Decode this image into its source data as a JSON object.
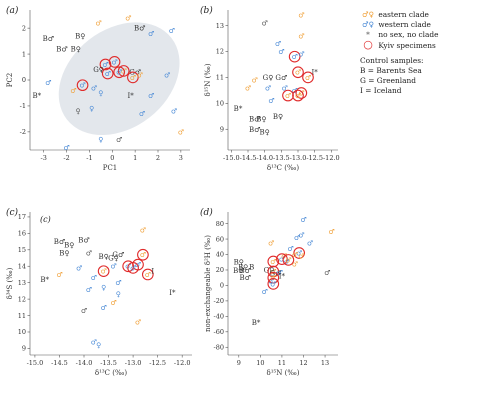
{
  "legend": {
    "items": [
      {
        "symbol": "♂♀",
        "label": "eastern clade",
        "color": "#f0a038"
      },
      {
        "symbol": "♂♀",
        "label": "western clade",
        "color": "#4a8ad6"
      },
      {
        "symbol": "*",
        "label": "no sex, no clade",
        "color": "#555555"
      },
      {
        "symbol": "○",
        "label": "Kyiv specimens",
        "color": "#e02b2b"
      }
    ],
    "control_title": "Control samples:",
    "controls": [
      "B = Barents Sea",
      "G = Greenland",
      "I = Iceland"
    ]
  },
  "colors": {
    "eastern": "#f0a038",
    "western": "#4a8ad6",
    "none": "#555555",
    "kyiv": "#e02b2b",
    "ellipse": "#e3e7ec"
  },
  "chart_data": [
    {
      "panel": "(a)",
      "type": "scatter",
      "xlabel": "PC1",
      "ylabel": "PC2",
      "xlim": [
        -3.6,
        3.4
      ],
      "ylim": [
        -2.7,
        2.7
      ],
      "xticks": [
        -3,
        -2,
        -1,
        0,
        1,
        2,
        3
      ],
      "yticks": [
        -2,
        -1,
        0,
        1,
        2
      ],
      "ellipse": {
        "cx": 0.3,
        "cy": 0.05,
        "rx": 2.9,
        "ry": 1.9,
        "angle": -38
      },
      "points": [
        {
          "x": 0.7,
          "y": 2.4,
          "clade": "eastern",
          "sex": "♂"
        },
        {
          "x": -0.6,
          "y": 2.2,
          "clade": "eastern",
          "sex": "♂"
        },
        {
          "x": 1.2,
          "y": 2.0,
          "label": "B",
          "sex": "♂",
          "clade": "control"
        },
        {
          "x": 1.7,
          "y": 1.8,
          "clade": "western",
          "sex": "♂"
        },
        {
          "x": -1.4,
          "y": 1.7,
          "label": "B",
          "sex": "♀",
          "clade": "control"
        },
        {
          "x": -2.8,
          "y": 1.6,
          "label": "B",
          "sex": "♂",
          "clade": "control"
        },
        {
          "x": -2.2,
          "y": 1.2,
          "label": "B",
          "sex": "♂",
          "clade": "control"
        },
        {
          "x": -1.6,
          "y": 1.2,
          "label": "B",
          "sex": "♀",
          "clade": "control"
        },
        {
          "x": 2.6,
          "y": 1.9,
          "clade": "western",
          "sex": "♂"
        },
        {
          "x": 0.1,
          "y": 0.7,
          "clade": "western",
          "sex": "♂",
          "kyiv": true
        },
        {
          "x": -0.3,
          "y": 0.6,
          "clade": "western",
          "sex": "♂",
          "kyiv": true
        },
        {
          "x": -0.6,
          "y": 0.4,
          "label": "G",
          "sex": "♀",
          "clade": "control"
        },
        {
          "x": 0.5,
          "y": 0.35,
          "clade": "eastern",
          "sex": "♂",
          "kyiv": true
        },
        {
          "x": 1.0,
          "y": 0.3,
          "label": "G",
          "sex": "♂",
          "clade": "control"
        },
        {
          "x": 0.3,
          "y": 0.3,
          "clade": "western",
          "sex": "♂",
          "kyiv": true
        },
        {
          "x": -0.2,
          "y": 0.25,
          "clade": "western",
          "sex": "♂",
          "kyiv": true
        },
        {
          "x": 0.9,
          "y": 0.1,
          "clade": "eastern",
          "sex": "♂",
          "kyiv": true
        },
        {
          "x": 1.2,
          "y": 0.2,
          "clade": "eastern",
          "sex": "♂"
        },
        {
          "x": 2.4,
          "y": 0.2,
          "clade": "western",
          "sex": "♂"
        },
        {
          "x": -2.8,
          "y": -0.1,
          "clade": "western",
          "sex": "♂"
        },
        {
          "x": -1.3,
          "y": -0.2,
          "clade": "western",
          "sex": "♂",
          "kyiv": true
        },
        {
          "x": -0.8,
          "y": -0.3,
          "clade": "western",
          "sex": "♂"
        },
        {
          "x": -1.7,
          "y": -0.4,
          "clade": "eastern",
          "sex": "♂"
        },
        {
          "x": -0.5,
          "y": -0.5,
          "clade": "western",
          "sex": "♀"
        },
        {
          "x": 0.8,
          "y": -0.6,
          "label": "I",
          "sex": "*",
          "clade": "control"
        },
        {
          "x": 1.7,
          "y": -0.6,
          "clade": "western",
          "sex": "♂"
        },
        {
          "x": -3.3,
          "y": -0.6,
          "label": "B",
          "sex": "*",
          "clade": "control"
        },
        {
          "x": -1.5,
          "y": -1.2,
          "clade": "none",
          "sex": "♀"
        },
        {
          "x": 1.3,
          "y": -1.3,
          "clade": "western",
          "sex": "♂"
        },
        {
          "x": 2.7,
          "y": -1.2,
          "clade": "western",
          "sex": "♂"
        },
        {
          "x": -0.9,
          "y": -1.1,
          "clade": "western",
          "sex": "♀"
        },
        {
          "x": 3.0,
          "y": -2.0,
          "clade": "eastern",
          "sex": "♂"
        },
        {
          "x": -0.5,
          "y": -2.3,
          "clade": "western",
          "sex": "♀"
        },
        {
          "x": 0.3,
          "y": -2.3,
          "clade": "none",
          "sex": "♂"
        },
        {
          "x": -2.0,
          "y": -2.6,
          "clade": "western",
          "sex": "♂"
        }
      ]
    },
    {
      "panel": "(b)",
      "type": "scatter",
      "xlabel": "δ¹³C (‰)",
      "ylabel": "δ¹⁵N (‰)",
      "xlim": [
        -15.1,
        -11.8
      ],
      "ylim": [
        8.2,
        13.6
      ],
      "xticks": [
        -15.0,
        -14.5,
        -14.0,
        -13.5,
        -13.0,
        -12.5,
        -12.0
      ],
      "yticks": [
        9,
        10,
        11,
        12,
        13
      ],
      "points": [
        {
          "x": -12.9,
          "y": 13.4,
          "clade": "eastern",
          "sex": "♂"
        },
        {
          "x": -14.0,
          "y": 13.1,
          "clade": "none",
          "sex": "♂"
        },
        {
          "x": -12.9,
          "y": 12.6,
          "clade": "eastern",
          "sex": "♂"
        },
        {
          "x": -13.6,
          "y": 12.3,
          "clade": "western",
          "sex": "♂"
        },
        {
          "x": -13.5,
          "y": 12.0,
          "clade": "western",
          "sex": "♂"
        },
        {
          "x": -13.1,
          "y": 11.8,
          "clade": "western",
          "sex": "♂",
          "kyiv": true
        },
        {
          "x": -12.9,
          "y": 11.9,
          "clade": "western",
          "sex": "♂"
        },
        {
          "x": -13.0,
          "y": 11.2,
          "clade": "eastern",
          "sex": "♂",
          "kyiv": true
        },
        {
          "x": -12.5,
          "y": 11.2,
          "label": "I",
          "sex": "*",
          "clade": "control"
        },
        {
          "x": -13.9,
          "y": 11.0,
          "label": "G",
          "sex": "♀",
          "clade": "control"
        },
        {
          "x": -13.5,
          "y": 11.0,
          "label": "G",
          "sex": "♂",
          "clade": "control"
        },
        {
          "x": -12.7,
          "y": 11.0,
          "clade": "eastern",
          "sex": "♂",
          "kyiv": true
        },
        {
          "x": -13.9,
          "y": 10.6,
          "clade": "western",
          "sex": "♂"
        },
        {
          "x": -13.4,
          "y": 10.6,
          "clade": "western",
          "sex": "♂"
        },
        {
          "x": -13.1,
          "y": 10.5,
          "clade": "western",
          "sex": "♂"
        },
        {
          "x": -12.9,
          "y": 10.4,
          "clade": "eastern",
          "sex": "♂",
          "kyiv": true
        },
        {
          "x": -13.3,
          "y": 10.3,
          "clade": "eastern",
          "sex": "♂",
          "kyiv": true
        },
        {
          "x": -13.0,
          "y": 10.3,
          "clade": "eastern",
          "sex": "♂",
          "kyiv": true
        },
        {
          "x": -13.8,
          "y": 10.1,
          "clade": "western",
          "sex": "♂"
        },
        {
          "x": -14.5,
          "y": 10.6,
          "clade": "eastern",
          "sex": "♂"
        },
        {
          "x": -14.3,
          "y": 10.9,
          "clade": "eastern",
          "sex": "♂"
        },
        {
          "x": -14.8,
          "y": 9.8,
          "label": "B",
          "sex": "*",
          "clade": "control"
        },
        {
          "x": -14.3,
          "y": 9.4,
          "label": "B",
          "sex": "♂",
          "clade": "control"
        },
        {
          "x": -14.1,
          "y": 9.4,
          "label": "B",
          "sex": "♀",
          "clade": "control"
        },
        {
          "x": -13.6,
          "y": 9.5,
          "label": "B",
          "sex": "♀",
          "clade": "control"
        },
        {
          "x": -14.3,
          "y": 9.0,
          "label": "B",
          "sex": "♂",
          "clade": "control"
        },
        {
          "x": -14.0,
          "y": 8.9,
          "label": "B",
          "sex": "♀",
          "clade": "control"
        }
      ]
    },
    {
      "panel": "(c)",
      "type": "scatter",
      "xlabel": "δ¹³C (‰)",
      "ylabel": "δ³⁴S (‰)",
      "xlim": [
        -15.1,
        -11.8
      ],
      "ylim": [
        8.6,
        17.3
      ],
      "xticks": [
        -15.0,
        -14.5,
        -14.0,
        -13.5,
        -13.0,
        -12.5,
        -12.0
      ],
      "yticks": [
        9,
        10,
        11,
        12,
        13,
        14,
        15,
        16,
        17
      ],
      "points": [
        {
          "x": -12.8,
          "y": 16.2,
          "clade": "eastern",
          "sex": "♂"
        },
        {
          "x": -14.0,
          "y": 15.6,
          "label": "B",
          "sex": "♂",
          "clade": "control"
        },
        {
          "x": -14.5,
          "y": 15.5,
          "label": "B",
          "sex": "♂",
          "clade": "control"
        },
        {
          "x": -14.3,
          "y": 15.3,
          "label": "B",
          "sex": "♀",
          "clade": "control"
        },
        {
          "x": -14.4,
          "y": 14.8,
          "label": "B",
          "sex": "♀",
          "clade": "control"
        },
        {
          "x": -13.9,
          "y": 14.8,
          "clade": "none",
          "sex": "♂"
        },
        {
          "x": -13.3,
          "y": 14.7,
          "label": "G",
          "sex": "♂",
          "clade": "control"
        },
        {
          "x": -13.6,
          "y": 14.6,
          "label": "B",
          "sex": "♀",
          "clade": "control"
        },
        {
          "x": -13.4,
          "y": 14.5,
          "label": "G",
          "sex": "♀",
          "clade": "control"
        },
        {
          "x": -12.8,
          "y": 14.7,
          "clade": "eastern",
          "sex": "♂",
          "kyiv": true
        },
        {
          "x": -12.9,
          "y": 14.1,
          "clade": "western",
          "sex": "♂",
          "kyiv": true
        },
        {
          "x": -13.1,
          "y": 14.0,
          "clade": "western",
          "sex": "♂",
          "kyiv": true
        },
        {
          "x": -13.0,
          "y": 13.9,
          "clade": "western",
          "sex": "♂",
          "kyiv": true
        },
        {
          "x": -13.6,
          "y": 13.7,
          "clade": "eastern",
          "sex": "♂",
          "kyiv": true
        },
        {
          "x": -12.7,
          "y": 13.5,
          "clade": "eastern",
          "sex": "♂",
          "kyiv": true
        },
        {
          "x": -12.6,
          "y": 13.7,
          "label": "I",
          "sex": "",
          "clade": "control"
        },
        {
          "x": -13.4,
          "y": 14.0,
          "clade": "western",
          "sex": "♂"
        },
        {
          "x": -14.1,
          "y": 13.9,
          "clade": "western",
          "sex": "♂"
        },
        {
          "x": -14.5,
          "y": 13.5,
          "clade": "eastern",
          "sex": "♂"
        },
        {
          "x": -14.8,
          "y": 13.2,
          "label": "B",
          "sex": "*",
          "clade": "control"
        },
        {
          "x": -13.8,
          "y": 13.3,
          "clade": "western",
          "sex": "♂"
        },
        {
          "x": -13.3,
          "y": 13.0,
          "clade": "western",
          "sex": "♂"
        },
        {
          "x": -13.6,
          "y": 12.7,
          "clade": "western",
          "sex": "♀"
        },
        {
          "x": -13.9,
          "y": 12.6,
          "clade": "western",
          "sex": "♂"
        },
        {
          "x": -13.3,
          "y": 12.3,
          "clade": "western",
          "sex": "♀"
        },
        {
          "x": -12.2,
          "y": 12.4,
          "label": "I",
          "sex": "*",
          "clade": "control"
        },
        {
          "x": -13.6,
          "y": 11.5,
          "clade": "western",
          "sex": "♂"
        },
        {
          "x": -13.4,
          "y": 11.8,
          "clade": "eastern",
          "sex": "♂"
        },
        {
          "x": -14.0,
          "y": 11.3,
          "clade": "none",
          "sex": "♂"
        },
        {
          "x": -12.9,
          "y": 10.6,
          "clade": "eastern",
          "sex": "♂"
        },
        {
          "x": -13.8,
          "y": 9.4,
          "clade": "western",
          "sex": "♂"
        },
        {
          "x": -13.7,
          "y": 9.2,
          "clade": "western",
          "sex": "♀"
        }
      ]
    },
    {
      "panel": "(d)",
      "type": "scatter",
      "xlabel": "δ¹⁵N (‰)",
      "ylabel": "non-exchangeable δ²H (‰)",
      "xlim": [
        8.5,
        13.6
      ],
      "ylim": [
        -90,
        95
      ],
      "xticks": [
        9,
        10,
        11,
        12,
        13
      ],
      "yticks": [
        -80,
        -60,
        -40,
        -20,
        0,
        20,
        40,
        60,
        80
      ],
      "points": [
        {
          "x": 12.0,
          "y": 85,
          "clade": "western",
          "sex": "♂"
        },
        {
          "x": 13.3,
          "y": 70,
          "clade": "eastern",
          "sex": "♂"
        },
        {
          "x": 11.9,
          "y": 65,
          "clade": "western",
          "sex": "♂"
        },
        {
          "x": 11.7,
          "y": 62,
          "clade": "western",
          "sex": "♂"
        },
        {
          "x": 10.5,
          "y": 55,
          "clade": "eastern",
          "sex": "♂"
        },
        {
          "x": 12.3,
          "y": 55,
          "clade": "western",
          "sex": "♂"
        },
        {
          "x": 11.4,
          "y": 48,
          "clade": "western",
          "sex": "♂"
        },
        {
          "x": 11.8,
          "y": 42,
          "clade": "western",
          "sex": "♂",
          "kyiv": true
        },
        {
          "x": 11.1,
          "y": 38,
          "clade": "eastern",
          "sex": "♂"
        },
        {
          "x": 11.9,
          "y": 38,
          "clade": "eastern",
          "sex": "♂"
        },
        {
          "x": 11.6,
          "y": 40,
          "clade": "eastern",
          "sex": "♂"
        },
        {
          "x": 11.0,
          "y": 34,
          "clade": "western",
          "sex": "♂",
          "kyiv": true
        },
        {
          "x": 10.6,
          "y": 31,
          "clade": "eastern",
          "sex": "♂",
          "kyiv": true
        },
        {
          "x": 11.2,
          "y": 30,
          "clade": "western",
          "sex": "♂"
        },
        {
          "x": 11.3,
          "y": 33,
          "clade": "eastern",
          "sex": "♂",
          "kyiv": true
        },
        {
          "x": 11.6,
          "y": 28,
          "clade": "eastern",
          "sex": "♂"
        },
        {
          "x": 9.0,
          "y": 30,
          "label": "B",
          "sex": "♀",
          "clade": "control"
        },
        {
          "x": 9.2,
          "y": 24,
          "label": "B",
          "sex": "♀",
          "clade": "control"
        },
        {
          "x": 9.6,
          "y": 24,
          "label": "B",
          "sex": "",
          "clade": "control"
        },
        {
          "x": 9.3,
          "y": 19,
          "label": "B",
          "sex": "♂",
          "clade": "control"
        },
        {
          "x": 9.0,
          "y": 19,
          "label": "B",
          "sex": "♂",
          "clade": "control"
        },
        {
          "x": 10.4,
          "y": 20,
          "label": "G",
          "sex": "♀",
          "clade": "control"
        },
        {
          "x": 10.6,
          "y": 18,
          "clade": "eastern",
          "sex": "♂",
          "kyiv": true
        },
        {
          "x": 10.7,
          "y": 16,
          "label": "G",
          "sex": "♂",
          "clade": "control"
        },
        {
          "x": 10.9,
          "y": 17,
          "clade": "western",
          "sex": "♂"
        },
        {
          "x": 13.1,
          "y": 17,
          "clade": "none",
          "sex": "♂"
        },
        {
          "x": 9.3,
          "y": 10,
          "label": "B",
          "sex": "♂",
          "clade": "control"
        },
        {
          "x": 10.6,
          "y": 10,
          "clade": "eastern",
          "sex": "♂",
          "kyiv": true
        },
        {
          "x": 10.5,
          "y": 6,
          "clade": "western",
          "sex": "♂"
        },
        {
          "x": 11.0,
          "y": 12,
          "label": "I",
          "sex": "*",
          "clade": "control"
        },
        {
          "x": 10.6,
          "y": 2,
          "clade": "western",
          "sex": "♂",
          "kyiv": true
        },
        {
          "x": 10.2,
          "y": -8,
          "clade": "western",
          "sex": "♂"
        },
        {
          "x": 9.8,
          "y": -48,
          "label": "B",
          "sex": "*",
          "clade": "control"
        }
      ]
    }
  ],
  "stray_text": {
    "c_inner": "(c)"
  }
}
